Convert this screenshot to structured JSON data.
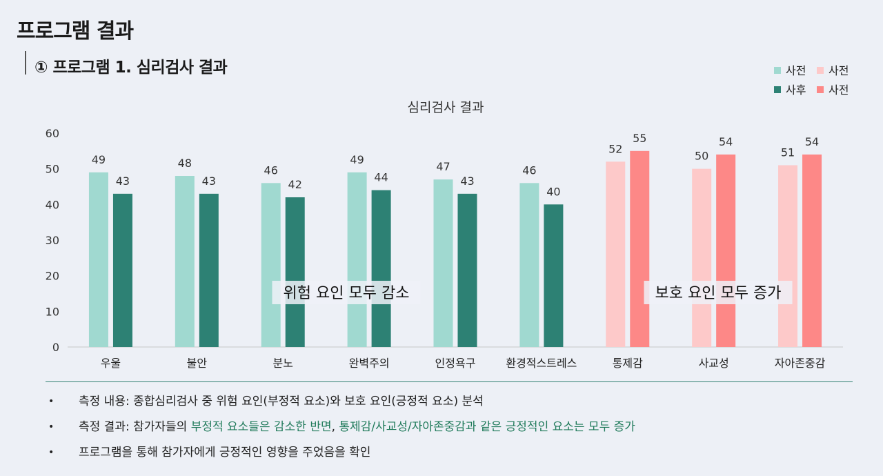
{
  "header": {
    "page_title": "프로그램 결과",
    "section_title": "① 프로그램 1. 심리검사 결과"
  },
  "chart_data": {
    "type": "bar",
    "title": "심리검사 결과",
    "categories": [
      "우울",
      "불안",
      "분노",
      "완벽주의",
      "인정욕구",
      "환경적스트레스",
      "통제감",
      "사교성",
      "자아존중감"
    ],
    "series": [
      {
        "name": "사전",
        "values": [
          49,
          48,
          46,
          49,
          47,
          46,
          null,
          null,
          null
        ],
        "color": "#a0d9d0"
      },
      {
        "name": "사후",
        "values": [
          43,
          43,
          42,
          44,
          43,
          40,
          null,
          null,
          null
        ],
        "color": "#2d8174"
      },
      {
        "name": "사전",
        "values": [
          null,
          null,
          null,
          null,
          null,
          null,
          52,
          50,
          51
        ],
        "color": "#fdc9c9"
      },
      {
        "name": "사전",
        "values": [
          null,
          null,
          null,
          null,
          null,
          null,
          55,
          54,
          54
        ],
        "color": "#fd8887"
      }
    ],
    "ylim": [
      0,
      60
    ],
    "yticks": [
      0,
      10,
      20,
      30,
      40,
      50,
      60
    ],
    "legend_position": "top-right",
    "annotations": [
      "위험 요인 모두 감소",
      "보호 요인 모두 증가"
    ]
  },
  "notes": [
    {
      "parts": [
        {
          "text": "측정 내용: 종합심리검사 중 위험 요인(부정적 요소)와 보호 요인(긍정적 요소) 분석",
          "hl": false
        }
      ]
    },
    {
      "parts": [
        {
          "text": "측정 결과: 참가자들의 ",
          "hl": false
        },
        {
          "text": "부정적 요소들은 감소한 반면",
          "hl": true
        },
        {
          "text": ", ",
          "hl": false
        },
        {
          "text": "통제감/사교성/자아존중감과 같은 긍정적인 요소는 모두 증가",
          "hl": true
        }
      ]
    },
    {
      "parts": [
        {
          "text": "프로그램을 통해 참가자에게 긍정적인 영향을 주었음을 확인",
          "hl": false
        }
      ]
    }
  ],
  "bullet_symbol": "•"
}
